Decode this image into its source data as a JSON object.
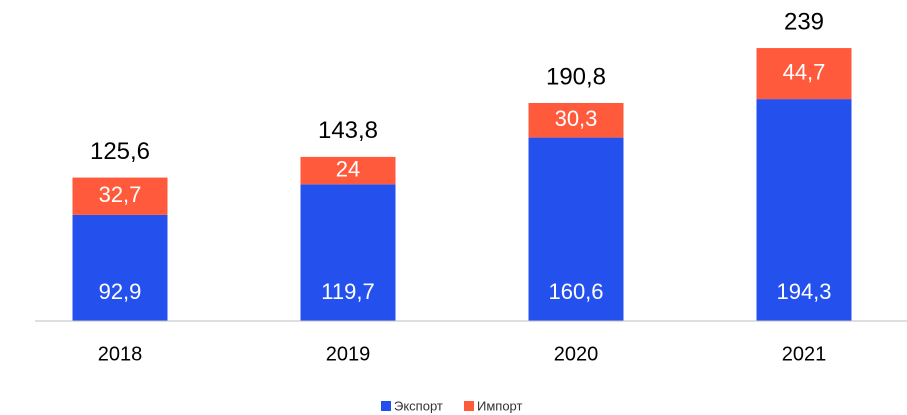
{
  "chart_data": {
    "type": "bar",
    "stacked": true,
    "categories": [
      "2018",
      "2019",
      "2020",
      "2021"
    ],
    "series": [
      {
        "name": "Экспорт",
        "color": "#2451ee",
        "values": [
          92.9,
          119.7,
          160.6,
          194.3
        ],
        "value_labels": [
          "92,9",
          "119,7",
          "160,6",
          "194,3"
        ]
      },
      {
        "name": "Импорт",
        "color": "#ff5a3c",
        "values": [
          32.7,
          24,
          30.3,
          44.7
        ],
        "value_labels": [
          "32,7",
          "24",
          "30,3",
          "44,7"
        ]
      }
    ],
    "totals": [
      125.6,
      143.8,
      190.8,
      239
    ],
    "total_labels": [
      "125,6",
      "143,8",
      "190,8",
      "239"
    ],
    "ylim": [
      0,
      250
    ],
    "legend": "bottom"
  }
}
